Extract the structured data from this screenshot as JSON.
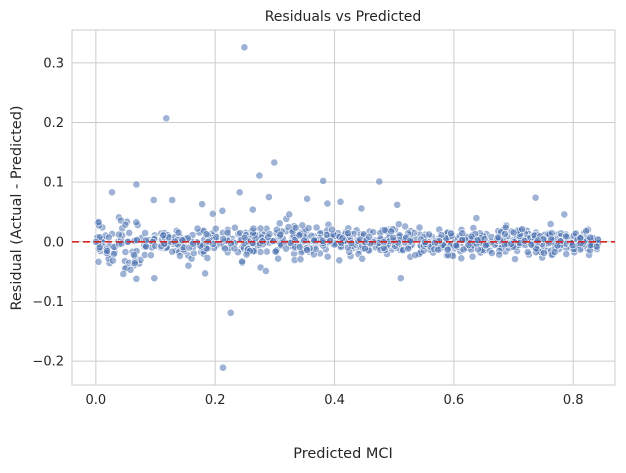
{
  "chart_data": {
    "type": "scatter",
    "title": "Residuals vs Predicted",
    "xlabel": "Predicted MCI",
    "ylabel": "Residual (Actual - Predicted)",
    "xlim": [
      -0.04,
      0.87
    ],
    "ylim": [
      -0.24,
      0.355
    ],
    "xticks": [
      "0.0",
      "0.2",
      "0.4",
      "0.6",
      "0.8"
    ],
    "yticks": [
      "−0.2",
      "−0.1",
      "0.0",
      "0.1",
      "0.2",
      "0.3"
    ],
    "grid": true,
    "reference_line": {
      "y": 0.0,
      "style": "dashed",
      "color": "#d62728"
    },
    "point_color": "#4c72b0",
    "outliers": [
      [
        0.249,
        0.326
      ],
      [
        0.118,
        0.207
      ],
      [
        0.299,
        0.133
      ],
      [
        0.274,
        0.111
      ],
      [
        0.241,
        0.083
      ],
      [
        0.027,
        0.083
      ],
      [
        0.068,
        0.096
      ],
      [
        0.475,
        0.101
      ],
      [
        0.381,
        0.102
      ],
      [
        0.737,
        0.074
      ],
      [
        0.097,
        0.07
      ],
      [
        0.128,
        0.07
      ],
      [
        0.29,
        0.075
      ],
      [
        0.354,
        0.072
      ],
      [
        0.388,
        0.064
      ],
      [
        0.178,
        0.063
      ],
      [
        0.41,
        0.067
      ],
      [
        0.505,
        0.062
      ],
      [
        0.196,
        0.047
      ],
      [
        0.212,
        0.052
      ],
      [
        0.263,
        0.054
      ],
      [
        0.324,
        0.046
      ],
      [
        0.785,
        0.046
      ],
      [
        0.445,
        0.056
      ],
      [
        0.226,
        -0.119
      ],
      [
        0.213,
        -0.211
      ],
      [
        0.098,
        -0.061
      ],
      [
        0.068,
        -0.062
      ],
      [
        0.183,
        -0.053
      ],
      [
        0.511,
        -0.061
      ],
      [
        0.276,
        -0.043
      ],
      [
        0.285,
        -0.049
      ],
      [
        0.155,
        -0.04
      ],
      [
        0.245,
        -0.033
      ],
      [
        0.408,
        -0.031
      ],
      [
        0.046,
        -0.054
      ],
      [
        0.058,
        -0.047
      ]
    ],
    "main_band": {
      "x_range": [
        0.0,
        0.845
      ],
      "n_points": 900,
      "description_series": "residual spread narrows from about ±0.04 near x=0 to about ±0.015 near x=0.8, centered on 0"
    }
  }
}
